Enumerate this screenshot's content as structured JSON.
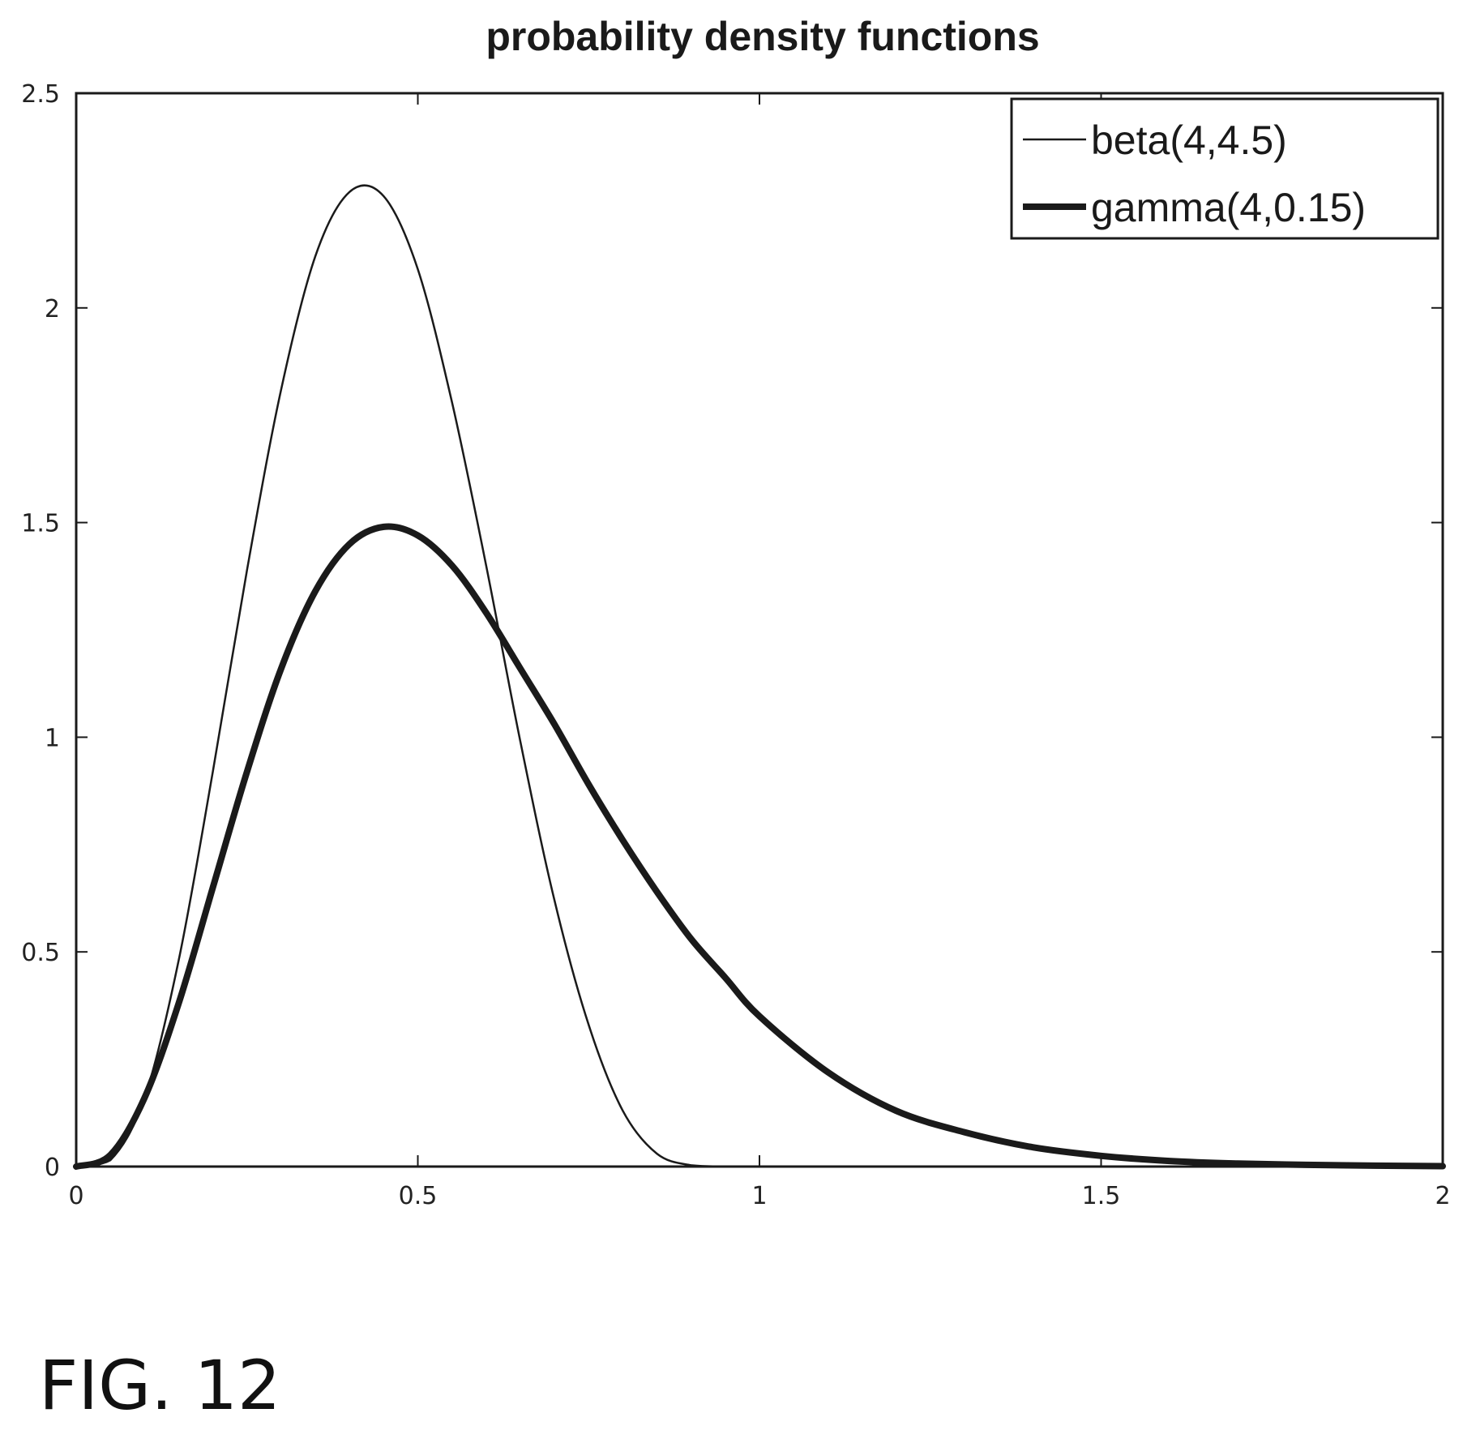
{
  "figure_label": "FIG. 12",
  "chart_data": {
    "type": "line",
    "title": "probability density functions",
    "xlabel": "",
    "ylabel": "",
    "xlim": [
      0,
      2
    ],
    "ylim": [
      0,
      2.5
    ],
    "xticks": [
      "0",
      "0.5",
      "1",
      "1.5",
      "2"
    ],
    "yticks": [
      "0",
      "0.5",
      "1",
      "1.5",
      "2",
      "2.5"
    ],
    "grid": false,
    "legend_position": "top-right",
    "x": [
      0,
      0.05,
      0.1,
      0.15,
      0.2,
      0.25,
      0.3,
      0.35,
      0.4,
      0.45,
      0.5,
      0.55,
      0.6,
      0.65,
      0.7,
      0.75,
      0.8,
      0.85,
      0.9,
      0.95,
      1.0,
      1.1,
      1.2,
      1.3,
      1.4,
      1.5,
      1.6,
      1.7,
      1.8,
      1.9,
      2.0
    ],
    "series": [
      {
        "name": "beta(4,4.5)",
        "style": "thin",
        "values": [
          0,
          0.015,
          0.16,
          0.48,
          0.92,
          1.39,
          1.81,
          2.12,
          2.27,
          2.26,
          2.09,
          1.78,
          1.4,
          0.99,
          0.62,
          0.33,
          0.13,
          0.03,
          0.003,
          0,
          0,
          0,
          0,
          0,
          0,
          0,
          0,
          0,
          0,
          0,
          0
        ]
      },
      {
        "name": "gamma(4,0.15)",
        "style": "thick",
        "values": [
          0,
          0.027,
          0.16,
          0.38,
          0.65,
          0.92,
          1.16,
          1.34,
          1.45,
          1.49,
          1.47,
          1.4,
          1.29,
          1.16,
          1.03,
          0.89,
          0.76,
          0.64,
          0.53,
          0.44,
          0.35,
          0.22,
          0.13,
          0.08,
          0.045,
          0.025,
          0.013,
          0.007,
          0.004,
          0.002,
          0.001
        ]
      }
    ]
  }
}
